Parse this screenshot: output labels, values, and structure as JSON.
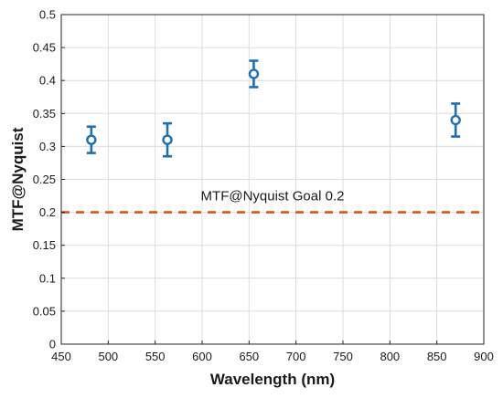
{
  "chart_data": {
    "type": "scatter",
    "xlabel": "Wavelength (nm)",
    "ylabel": "MTF@Nyquist",
    "xlim": [
      450,
      900
    ],
    "ylim": [
      0,
      0.5
    ],
    "xticks": [
      450,
      500,
      550,
      600,
      650,
      700,
      750,
      800,
      850,
      900
    ],
    "yticks": [
      0,
      0.05,
      0.1,
      0.15,
      0.2,
      0.25,
      0.3,
      0.35,
      0.4,
      0.45,
      0.5
    ],
    "x_tick_labels": [
      "450",
      "500",
      "550",
      "600",
      "650",
      "700",
      "750",
      "800",
      "850",
      "900"
    ],
    "y_tick_labels": [
      "0",
      "0.05",
      "0.1",
      "0.15",
      "0.2",
      "0.25",
      "0.3",
      "0.35",
      "0.4",
      "0.45",
      "0.5"
    ],
    "grid": true,
    "series": [
      {
        "color": "#1f6fb4",
        "marker": "circle",
        "points": [
          {
            "x": 482,
            "y": 0.31,
            "err_low": 0.29,
            "err_high": 0.33
          },
          {
            "x": 563,
            "y": 0.31,
            "err_low": 0.285,
            "err_high": 0.335
          },
          {
            "x": 655,
            "y": 0.41,
            "err_low": 0.39,
            "err_high": 0.43
          },
          {
            "x": 870,
            "y": 0.34,
            "err_low": 0.315,
            "err_high": 0.365
          }
        ]
      }
    ],
    "reference_line": {
      "y": 0.2,
      "style": "dashed",
      "color": "#d9541a"
    },
    "annotation": {
      "text": "MTF@Nyquist Goal 0.2",
      "x": 675,
      "y": 0.225
    }
  }
}
